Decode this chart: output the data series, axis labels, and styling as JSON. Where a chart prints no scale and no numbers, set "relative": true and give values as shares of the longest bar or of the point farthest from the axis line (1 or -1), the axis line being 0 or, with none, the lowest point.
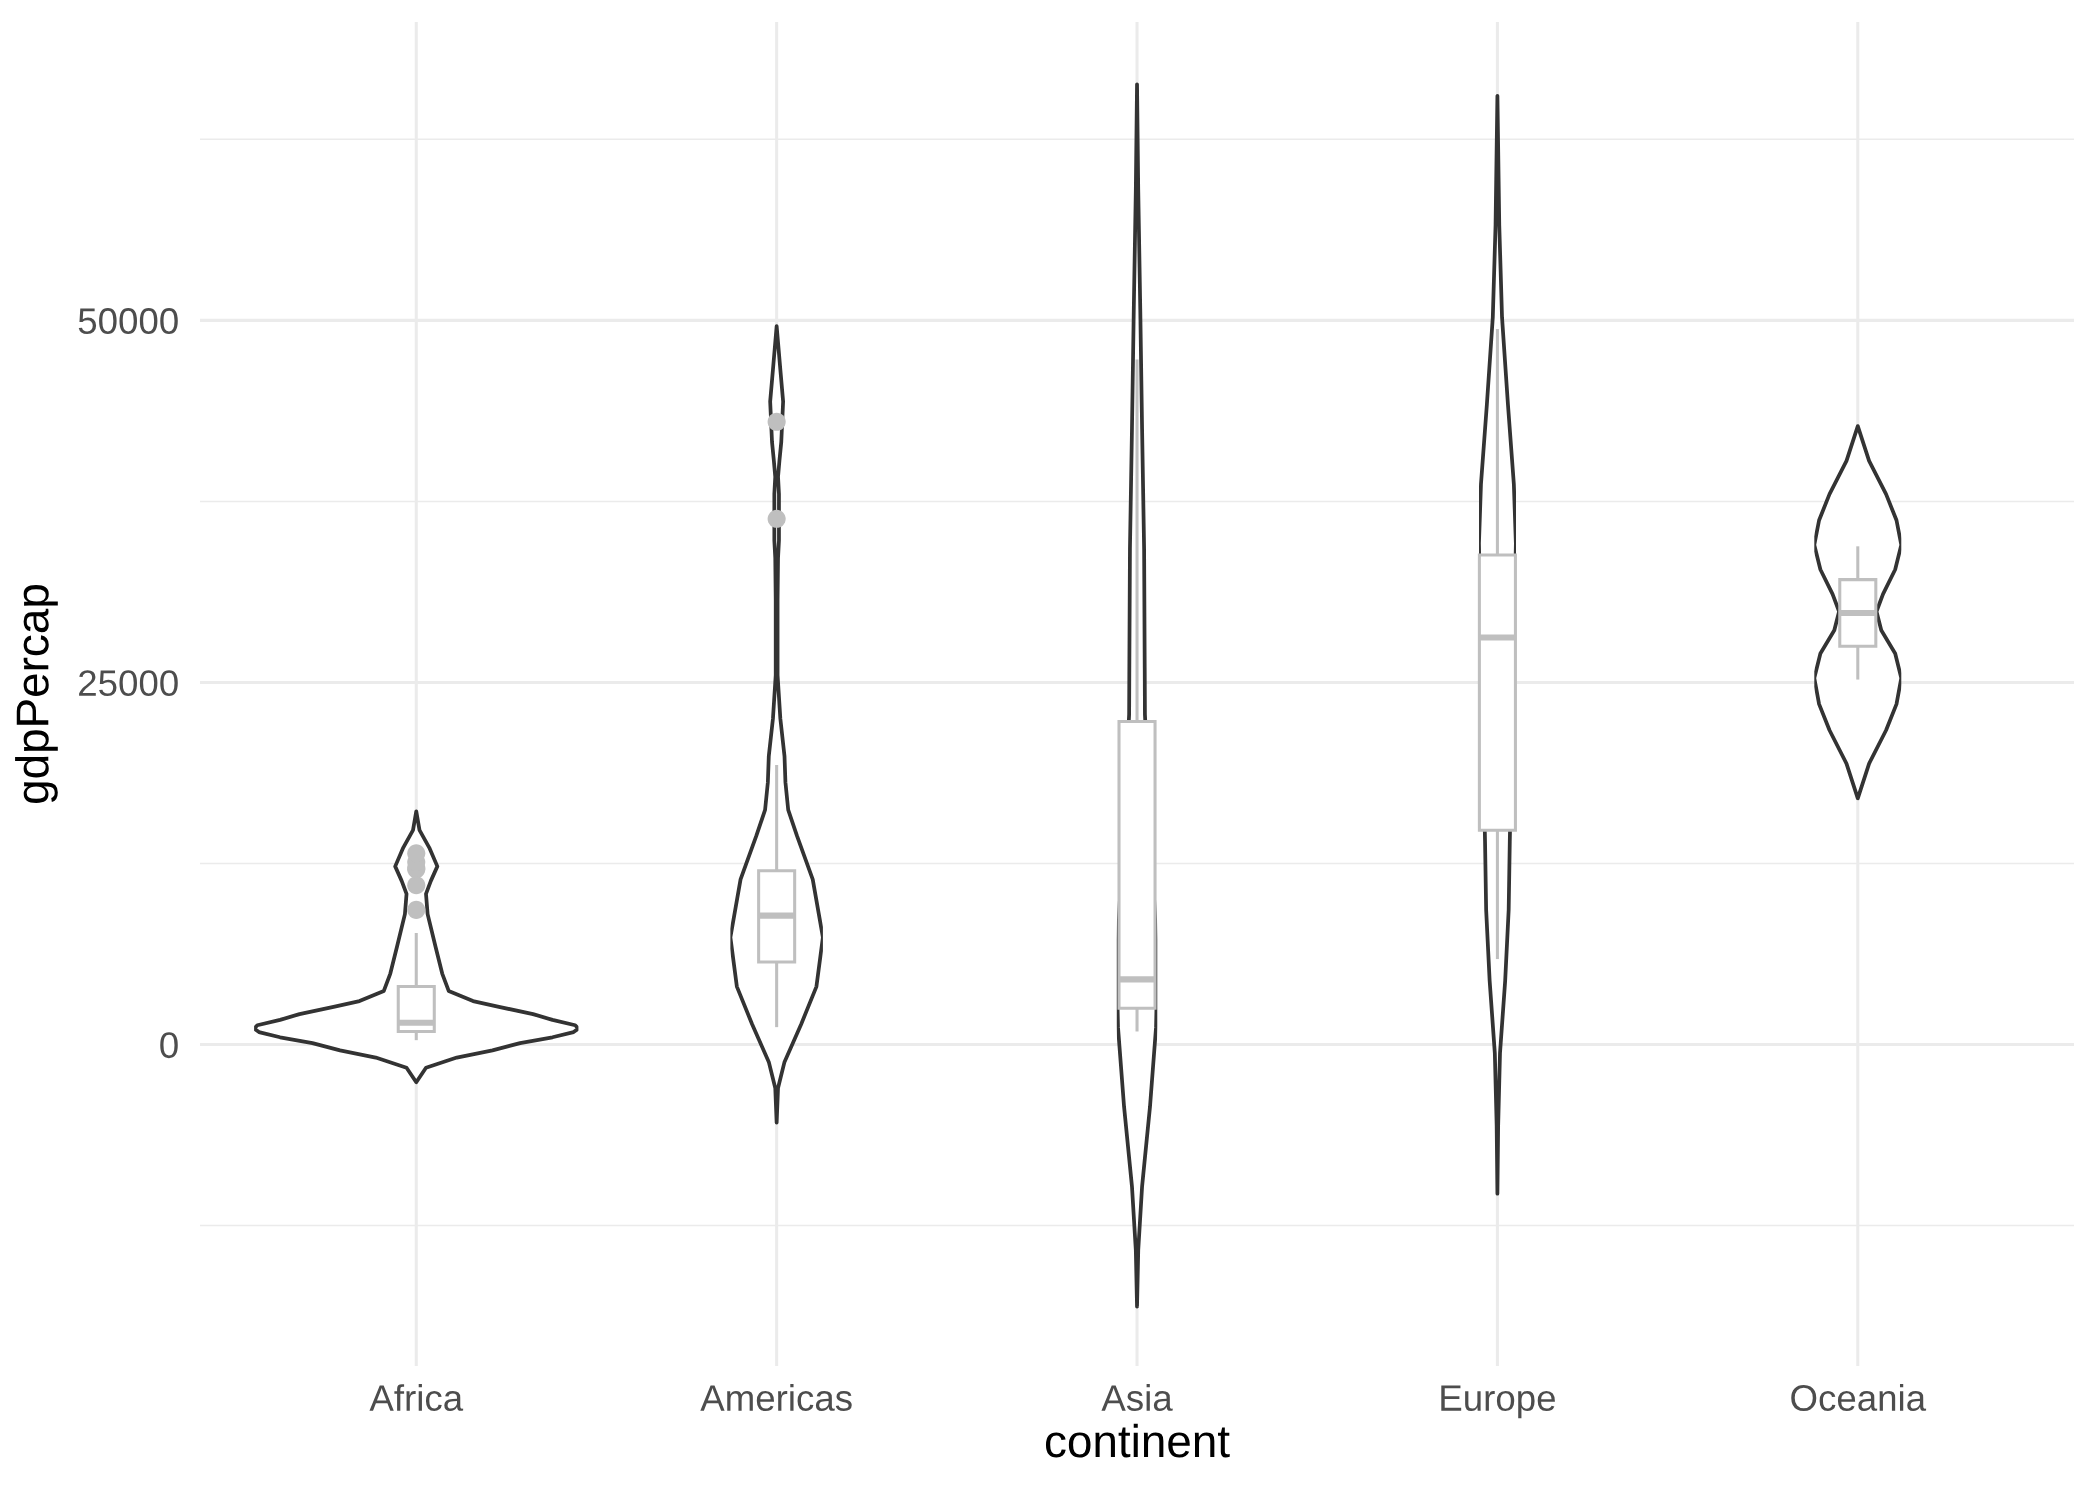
{
  "chart_data": [
    {
      "type": "box",
      "xlabel": "continent",
      "ylabel": "gdpPercap",
      "categories": [
        "Africa",
        "Americas",
        "Asia",
        "Europe",
        "Oceania"
      ],
      "ylim": [
        -22200,
        70600
      ],
      "yticks": [
        {
          "value": -12500,
          "label": null
        },
        0,
        {
          "value": 12500,
          "label": null
        },
        25000,
        {
          "value": 37500,
          "label": null
        },
        50000,
        {
          "value": 62500,
          "label": null
        }
      ],
      "grid": true,
      "series": [
        {
          "color": "#bfbfbf",
          "boxes": [
            {
              "low": 300,
              "q1": 900,
              "median": 1500,
              "q3": 4000,
              "high": 7700,
              "outliers": [
                9300,
                11000,
                12100,
                12200,
                12600,
                13200
              ]
            },
            {
              "low": 1200,
              "q1": 5700,
              "median": 8900,
              "q3": 12000,
              "high": 19300,
              "outliers": [
                36300,
                43000
              ]
            },
            {
              "low": 900,
              "q1": 2500,
              "median": 4500,
              "q3": 22300,
              "high": 47300
            },
            {
              "low": 5900,
              "q1": 14800,
              "median": 28100,
              "q3": 33800,
              "high": 49400
            },
            {
              "low": 25200,
              "q1": 27500,
              "median": 29800,
              "q3": 32100,
              "high": 34400
            }
          ]
        }
      ]
    },
    {
      "type": "area",
      "orientation": "horizontal",
      "relative": true,
      "ylim": [
        -22200,
        70600
      ],
      "tick_labels": false,
      "series": [
        {
          "color": "#333333",
          "x": [
            -2600,
            -1600,
            -900,
            -400,
            100,
            500,
            860,
            1100,
            1330,
            1700,
            2100,
            2600,
            3000,
            3700,
            4900,
            6700,
            9000,
            10400,
            11300,
            12300,
            13600,
            14800,
            16100
          ],
          "values": [
            0,
            0.06,
            0.25,
            0.47,
            0.64,
            0.84,
            0.97,
            1.0,
            0.98,
            0.84,
            0.72,
            0.51,
            0.35,
            0.2,
            0.16,
            0.12,
            0.07,
            0.06,
            0.09,
            0.13,
            0.08,
            0.02,
            0
          ]
        }
      ]
    },
    {
      "type": "area",
      "orientation": "horizontal",
      "relative": true,
      "ylim": [
        -22200,
        70600
      ],
      "tick_labels": false,
      "series": [
        {
          "color": "#333333",
          "x": [
            -5400,
            -3000,
            -1200,
            1400,
            4000,
            7400,
            11400,
            14400,
            16200,
            18100,
            19900,
            22500,
            25500,
            30700,
            33600,
            34800,
            38000,
            39200,
            40300,
            41600,
            44400,
            46600,
            49600
          ],
          "values": [
            0,
            0.03,
            0.17,
            0.53,
            0.86,
            1.0,
            0.78,
            0.44,
            0.25,
            0.19,
            0.17,
            0.08,
            0.02,
            0.02,
            0.03,
            0.05,
            0.05,
            0.03,
            0.06,
            0.1,
            0.14,
            0.08,
            0
          ]
        }
      ]
    },
    {
      "type": "area",
      "orientation": "horizontal",
      "relative": true,
      "ylim": [
        -22200,
        70600
      ],
      "tick_labels": false,
      "series": [
        {
          "color": "#333333",
          "x": [
            -18100,
            -14200,
            -9800,
            -4300,
            1200,
            5100,
            6800,
            22800,
            26000,
            34200,
            42500,
            50800,
            59000,
            66300
          ],
          "values": [
            0,
            0.06,
            0.25,
            0.64,
            0.94,
            1.0,
            0.96,
            0.39,
            0.38,
            0.35,
            0.25,
            0.16,
            0.06,
            0
          ]
        }
      ]
    },
    {
      "type": "area",
      "orientation": "horizontal",
      "relative": true,
      "ylim": [
        -22200,
        70600
      ],
      "tick_labels": false,
      "series": [
        {
          "color": "#333333",
          "x": [
            -10300,
            -5600,
            -600,
            4400,
            9300,
            14000,
            34600,
            38700,
            44200,
            50200,
            56600,
            65500
          ],
          "values": [
            0,
            0.04,
            0.14,
            0.42,
            0.61,
            0.67,
            1.0,
            0.89,
            0.57,
            0.25,
            0.1,
            0
          ]
        }
      ]
    },
    {
      "type": "area",
      "orientation": "horizontal",
      "relative": true,
      "ylim": [
        -22200,
        70600
      ],
      "tick_labels": false,
      "series": [
        {
          "color": "#333333",
          "x": [
            17000,
            19400,
            21700,
            23500,
            25300,
            27000,
            28600,
            29900,
            31100,
            32800,
            34500,
            36200,
            38000,
            40300,
            42700
          ],
          "values": [
            0,
            0.26,
            0.65,
            0.89,
            1.0,
            0.86,
            0.54,
            0.43,
            0.58,
            0.86,
            1.0,
            0.89,
            0.65,
            0.26,
            0
          ]
        }
      ]
    }
  ]
}
